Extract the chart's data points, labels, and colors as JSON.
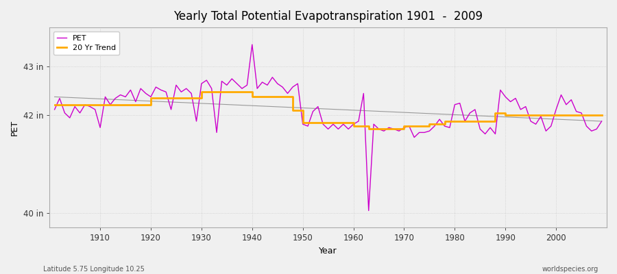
{
  "title": "Yearly Total Potential Evapotranspiration 1901  -  2009",
  "xlabel": "Year",
  "ylabel": "PET",
  "footnote_left": "Latitude 5.75 Longitude 10.25",
  "footnote_right": "worldspecies.org",
  "bg_color": "#f0f0f0",
  "plot_bg_color": "#f0f0f0",
  "grid_color": "#cccccc",
  "pet_color": "#cc00cc",
  "trend_color": "#ffaa00",
  "long_trend_color": "#999999",
  "ylim_min": 39.7,
  "ylim_max": 43.8,
  "yticks": [
    40,
    42,
    43
  ],
  "ytick_labels": [
    "40 in",
    "42 in",
    "43 in"
  ],
  "years": [
    1901,
    1902,
    1903,
    1904,
    1905,
    1906,
    1907,
    1908,
    1909,
    1910,
    1911,
    1912,
    1913,
    1914,
    1915,
    1916,
    1917,
    1918,
    1919,
    1920,
    1921,
    1922,
    1923,
    1924,
    1925,
    1926,
    1927,
    1928,
    1929,
    1930,
    1931,
    1932,
    1933,
    1934,
    1935,
    1936,
    1937,
    1938,
    1939,
    1940,
    1941,
    1942,
    1943,
    1944,
    1945,
    1946,
    1947,
    1948,
    1949,
    1950,
    1951,
    1952,
    1953,
    1954,
    1955,
    1956,
    1957,
    1958,
    1959,
    1960,
    1961,
    1962,
    1963,
    1964,
    1965,
    1966,
    1967,
    1968,
    1969,
    1970,
    1971,
    1972,
    1973,
    1974,
    1975,
    1976,
    1977,
    1978,
    1979,
    1980,
    1981,
    1982,
    1983,
    1984,
    1985,
    1986,
    1987,
    1988,
    1989,
    1990,
    1991,
    1992,
    1993,
    1994,
    1995,
    1996,
    1997,
    1998,
    1999,
    2000,
    2001,
    2002,
    2003,
    2004,
    2005,
    2006,
    2007,
    2008,
    2009
  ],
  "pet_values": [
    42.12,
    42.35,
    42.05,
    41.95,
    42.18,
    42.05,
    42.22,
    42.18,
    42.12,
    41.75,
    42.38,
    42.22,
    42.35,
    42.42,
    42.38,
    42.52,
    42.28,
    42.55,
    42.45,
    42.38,
    42.58,
    42.52,
    42.48,
    42.12,
    42.62,
    42.48,
    42.55,
    42.45,
    41.88,
    42.65,
    42.72,
    42.55,
    41.65,
    42.7,
    42.62,
    42.75,
    42.65,
    42.55,
    42.62,
    43.45,
    42.55,
    42.68,
    42.62,
    42.78,
    42.65,
    42.58,
    42.45,
    42.58,
    42.65,
    41.82,
    41.78,
    42.08,
    42.18,
    41.82,
    41.72,
    41.82,
    41.72,
    41.82,
    41.72,
    41.82,
    41.88,
    42.45,
    40.05,
    41.82,
    41.72,
    41.68,
    41.75,
    41.72,
    41.68,
    41.75,
    41.78,
    41.55,
    41.65,
    41.65,
    41.68,
    41.78,
    41.92,
    41.78,
    41.75,
    42.22,
    42.25,
    41.88,
    42.05,
    42.12,
    41.72,
    41.62,
    41.75,
    41.62,
    42.52,
    42.38,
    42.28,
    42.35,
    42.12,
    42.18,
    41.88,
    41.82,
    41.98,
    41.68,
    41.78,
    42.12,
    42.42,
    42.22,
    42.32,
    42.08,
    42.05,
    41.78,
    41.68,
    41.72,
    41.88
  ],
  "trend20_x": [
    1901,
    1920,
    1920,
    1930,
    1930,
    1940,
    1940,
    1948,
    1948,
    1950,
    1950,
    1960,
    1960,
    1963,
    1963,
    1970,
    1970,
    1975,
    1975,
    1978,
    1978,
    1988,
    1988,
    1990,
    1990,
    2009
  ],
  "trend20_y": [
    42.22,
    42.22,
    42.35,
    42.35,
    42.48,
    42.48,
    42.38,
    42.38,
    42.1,
    42.1,
    41.85,
    41.85,
    41.78,
    41.78,
    41.72,
    41.72,
    41.78,
    41.78,
    41.82,
    41.82,
    41.88,
    41.88,
    42.05,
    42.05,
    42.0,
    42.0
  ],
  "long_trend_x": [
    1901,
    2009
  ],
  "long_trend_y": [
    42.38,
    41.88
  ],
  "xlim_min": 1900,
  "xlim_max": 2010,
  "xticks": [
    1910,
    1920,
    1930,
    1940,
    1950,
    1960,
    1970,
    1980,
    1990,
    2000
  ]
}
